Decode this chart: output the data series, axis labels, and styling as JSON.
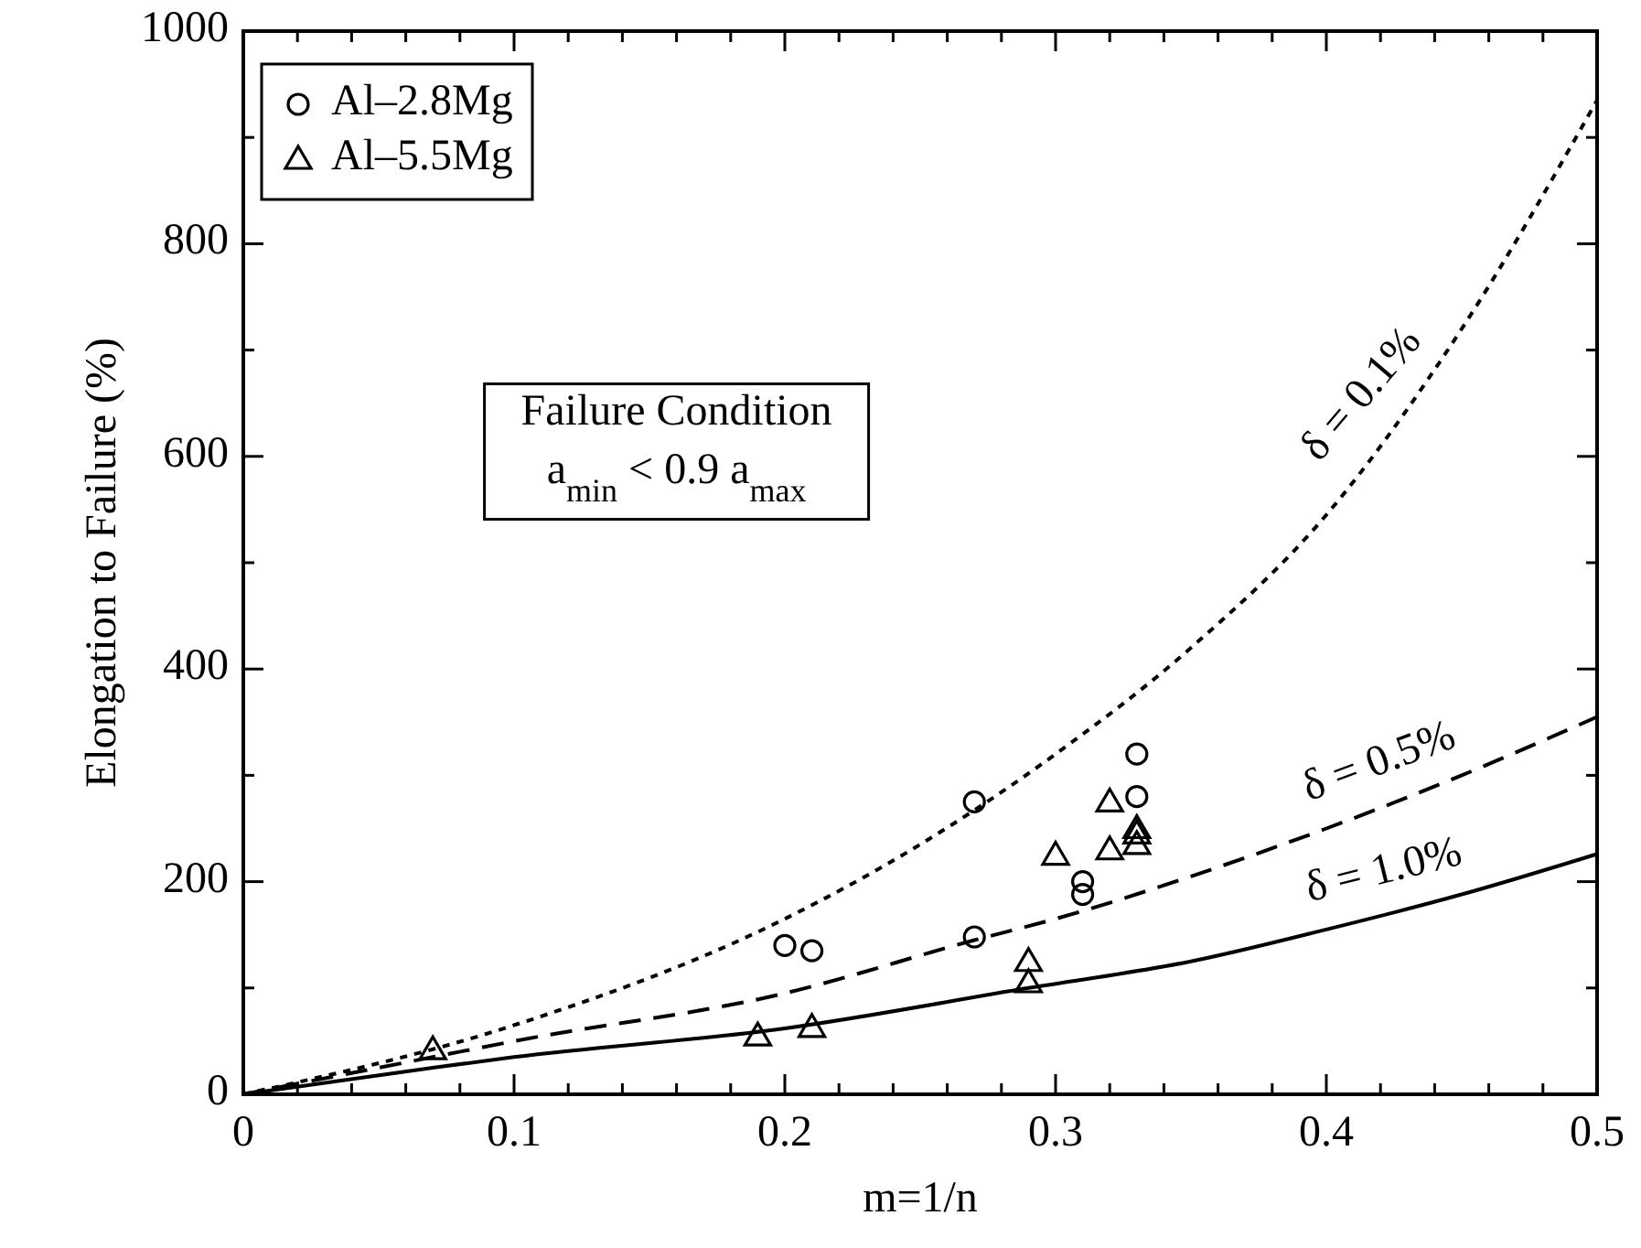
{
  "chart_data": {
    "type": "scatter",
    "xlabel": "m=1/n",
    "ylabel": "Elongation to Failure (%)",
    "xlim": [
      0,
      0.5
    ],
    "ylim": [
      0,
      1000
    ],
    "xticks": [
      0,
      {
        "value": 0.02,
        "label": null
      },
      {
        "value": 0.04,
        "label": null
      },
      {
        "value": 0.06,
        "label": null
      },
      {
        "value": 0.08,
        "label": null
      },
      0.1,
      {
        "value": 0.12,
        "label": null
      },
      {
        "value": 0.14,
        "label": null
      },
      {
        "value": 0.16,
        "label": null
      },
      {
        "value": 0.18,
        "label": null
      },
      0.2,
      {
        "value": 0.22,
        "label": null
      },
      {
        "value": 0.24,
        "label": null
      },
      {
        "value": 0.26,
        "label": null
      },
      {
        "value": 0.28,
        "label": null
      },
      0.3,
      {
        "value": 0.32,
        "label": null
      },
      {
        "value": 0.34,
        "label": null
      },
      {
        "value": 0.36,
        "label": null
      },
      {
        "value": 0.38,
        "label": null
      },
      0.4,
      {
        "value": 0.42,
        "label": null
      },
      {
        "value": 0.44,
        "label": null
      },
      {
        "value": 0.46,
        "label": null
      },
      {
        "value": 0.48,
        "label": null
      },
      0.5
    ],
    "yticks": [
      0,
      {
        "value": 100,
        "label": null
      },
      200,
      {
        "value": 300,
        "label": null
      },
      400,
      {
        "value": 500,
        "label": null
      },
      600,
      {
        "value": 700,
        "label": null
      },
      800,
      {
        "value": 900,
        "label": null
      },
      1000
    ],
    "legend": "top left",
    "grid": false,
    "annotations": [
      "Failure Condition",
      "a$_{min}$ < 0.9 a$_{max}$"
    ],
    "series": [
      {
        "name": "Al–2.8Mg",
        "marker": "circle",
        "color": "#000000",
        "x": [
          0.2,
          0.21,
          0.27,
          0.27,
          0.31,
          0.31,
          0.33,
          0.33
        ],
        "values": [
          140,
          135,
          275,
          148,
          200,
          188,
          320,
          280
        ]
      },
      {
        "name": "Al–5.5Mg",
        "marker": "triangle",
        "color": "#000000",
        "x": [
          0.07,
          0.19,
          0.21,
          0.29,
          0.29,
          0.3,
          0.32,
          0.32,
          0.33,
          0.33,
          0.33
        ],
        "values": [
          42,
          55,
          63,
          125,
          105,
          225,
          275,
          230,
          250,
          245,
          235
        ]
      },
      {
        "name": "δ = 0.1%",
        "type": "line",
        "marker": "none",
        "line_style": "dotted",
        "color": "#000000",
        "x": [
          0,
          0.1,
          0.2,
          0.25,
          0.3,
          0.35,
          0.4,
          0.45,
          0.5
        ],
        "values": [
          0,
          65,
          165,
          235,
          320,
          420,
          545,
          720,
          935
        ]
      },
      {
        "name": "δ = 0.5%",
        "type": "line",
        "marker": "none",
        "line_style": "dashed",
        "color": "#000000",
        "x": [
          0,
          0.07,
          0.1,
          0.2,
          0.27,
          0.3,
          0.35,
          0.4,
          0.45,
          0.5
        ],
        "values": [
          0,
          35,
          50,
          95,
          145,
          165,
          205,
          250,
          300,
          355
        ]
      },
      {
        "name": "δ = 1.0%",
        "type": "line",
        "marker": "none",
        "line_style": "solid",
        "color": "#000000",
        "x": [
          0,
          0.07,
          0.1,
          0.2,
          0.29,
          0.35,
          0.4,
          0.45,
          0.5
        ],
        "values": [
          0,
          25,
          35,
          62,
          100,
          125,
          155,
          188,
          226
        ]
      }
    ]
  }
}
